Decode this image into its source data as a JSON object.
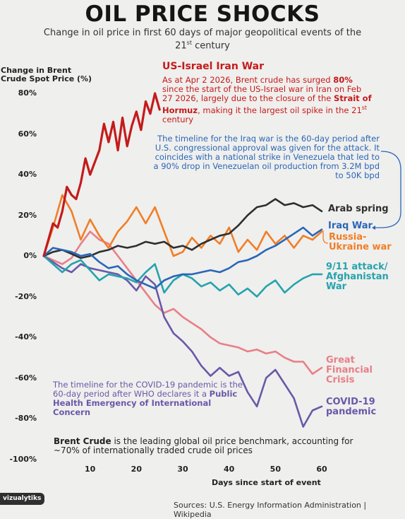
{
  "header": {
    "title": "OIL PRICE SHOCKS",
    "subtitle_pre": "Change in oil price in first 60 days of major geopolitical events of the 21",
    "subtitle_sup": "st",
    "subtitle_post": " century"
  },
  "annotations": {
    "iran_title": "US-Israel Iran War",
    "iran_note_1": "As at Apr 2 2026, Brent crude has surged ",
    "iran_note_bold1": "80%",
    "iran_note_2": " since the start of the US-Israel war in Iran on Feb 27 2026, largely due to the closure of the ",
    "iran_note_bold2": "Strait of Hormuz",
    "iran_note_3": ", making it the largest oil spike in the 21",
    "iran_note_sup": "st",
    "iran_note_4": " century",
    "iraq_note": "The timeline for the Iraq war is the 60-day period after U.S. congressional approval was given for the attack. It coincides with a national strike in Venezuela that led to a 90% drop in Venezuelan oil production from 3.2M bpd to 50K bpd",
    "covid_note_1": "The timeline for the COVID-19 pandemic is the 60-day period after WHO declares it a ",
    "covid_note_bold": "Public Health Emergency of International Concern",
    "brent_note_bold": "Brent Crude",
    "brent_note_rest": " is the leading global oil price benchmark, accounting for ~70% of internationally traded crude oil prices"
  },
  "footer": {
    "source": "Sources: U.S. Energy Information Administration | Wikipedia",
    "logo": "vizualytiks"
  },
  "chart_data": {
    "type": "line",
    "xlabel": "Days since start of event",
    "ylabel": "Change in Brent Crude Spot Price (%)",
    "xlim": [
      0,
      60
    ],
    "ylim": [
      -100,
      80
    ],
    "xticks": [
      10,
      20,
      30,
      40,
      50,
      60
    ],
    "yticks": [
      80,
      60,
      40,
      20,
      0,
      -20,
      -40,
      -60,
      -80,
      -100
    ],
    "ytick_labels": [
      "80%",
      "60%",
      "40%",
      "20%",
      "0%",
      "-20%",
      "-40%",
      "-60%",
      "-80%",
      "-100%"
    ],
    "grid": false,
    "series": [
      {
        "name": "US-Israel Iran War",
        "color": "#c41b1b",
        "x": [
          0,
          1,
          2,
          3,
          4,
          5,
          6,
          7,
          8,
          9,
          10,
          11,
          12,
          13,
          14,
          15,
          16,
          17,
          18,
          19,
          20,
          21,
          22,
          23,
          24,
          25
        ],
        "y": [
          0,
          8,
          16,
          14,
          22,
          34,
          30,
          28,
          36,
          48,
          40,
          46,
          52,
          65,
          56,
          66,
          52,
          68,
          54,
          64,
          71,
          62,
          76,
          70,
          80,
          72
        ]
      },
      {
        "name": "Arab spring",
        "color": "#2f2f2f",
        "x": [
          0,
          2,
          4,
          6,
          8,
          10,
          12,
          14,
          16,
          18,
          20,
          22,
          24,
          26,
          28,
          30,
          32,
          34,
          36,
          38,
          40,
          42,
          44,
          46,
          48,
          50,
          52,
          54,
          56,
          58,
          60
        ],
        "y": [
          0,
          2,
          3,
          1,
          -1,
          0,
          2,
          3,
          5,
          4,
          5,
          7,
          6,
          7,
          4,
          5,
          3,
          6,
          8,
          10,
          11,
          15,
          20,
          24,
          25,
          28,
          25,
          26,
          24,
          25,
          22
        ]
      },
      {
        "name": "Iraq War",
        "color": "#2a66b8",
        "x": [
          0,
          2,
          4,
          6,
          8,
          10,
          12,
          14,
          16,
          18,
          20,
          22,
          24,
          26,
          28,
          30,
          32,
          34,
          36,
          38,
          40,
          42,
          44,
          46,
          48,
          50,
          52,
          54,
          56,
          58,
          60
        ],
        "y": [
          0,
          4,
          3,
          2,
          0,
          1,
          -3,
          -6,
          -5,
          -9,
          -12,
          -14,
          -16,
          -12,
          -10,
          -9,
          -9,
          -8,
          -7,
          -8,
          -6,
          -3,
          -2,
          0,
          3,
          5,
          8,
          11,
          14,
          10,
          13
        ]
      },
      {
        "name": "Russia-Ukraine war",
        "color": "#f07e28",
        "x": [
          0,
          2,
          4,
          6,
          8,
          10,
          12,
          14,
          16,
          18,
          20,
          22,
          24,
          26,
          28,
          30,
          32,
          34,
          36,
          38,
          40,
          42,
          44,
          46,
          48,
          50,
          52,
          54,
          56,
          58,
          60
        ],
        "y": [
          0,
          14,
          30,
          22,
          8,
          18,
          10,
          4,
          12,
          17,
          24,
          16,
          24,
          12,
          0,
          2,
          9,
          4,
          10,
          6,
          14,
          2,
          8,
          3,
          12,
          6,
          10,
          4,
          10,
          8,
          12
        ]
      },
      {
        "name": "9/11 attack/ Afghanistan War",
        "color": "#25a3ad",
        "x": [
          0,
          2,
          4,
          6,
          8,
          10,
          12,
          14,
          16,
          18,
          20,
          22,
          24,
          26,
          28,
          30,
          32,
          34,
          36,
          38,
          40,
          42,
          44,
          46,
          48,
          50,
          52,
          54,
          56,
          58,
          60
        ],
        "y": [
          0,
          -4,
          -8,
          -4,
          -2,
          -7,
          -12,
          -9,
          -10,
          -11,
          -13,
          -8,
          -4,
          -18,
          -12,
          -9,
          -11,
          -15,
          -13,
          -17,
          -14,
          -19,
          -16,
          -20,
          -15,
          -12,
          -18,
          -14,
          -11,
          -9,
          -9
        ]
      },
      {
        "name": "Great Financial Crisis",
        "color": "#e87f87",
        "x": [
          0,
          2,
          4,
          6,
          8,
          10,
          12,
          14,
          16,
          18,
          20,
          22,
          24,
          26,
          28,
          30,
          32,
          34,
          36,
          38,
          40,
          42,
          44,
          46,
          48,
          50,
          52,
          54,
          56,
          58,
          60
        ],
        "y": [
          0,
          -2,
          -4,
          -1,
          6,
          12,
          8,
          6,
          0,
          -6,
          -12,
          -18,
          -24,
          -28,
          -26,
          -30,
          -33,
          -36,
          -40,
          -43,
          -44,
          -45,
          -47,
          -46,
          -48,
          -47,
          -50,
          -52,
          -52,
          -58,
          -55
        ]
      },
      {
        "name": "COVID-19 pandemic",
        "color": "#6a58a8",
        "x": [
          0,
          2,
          4,
          6,
          8,
          10,
          12,
          14,
          16,
          18,
          20,
          22,
          24,
          26,
          28,
          30,
          32,
          34,
          36,
          38,
          40,
          42,
          44,
          46,
          48,
          50,
          52,
          54,
          56,
          58,
          60
        ],
        "y": [
          0,
          -3,
          -6,
          -8,
          -4,
          -6,
          -7,
          -8,
          -9,
          -12,
          -17,
          -10,
          -14,
          -30,
          -38,
          -42,
          -47,
          -54,
          -59,
          -55,
          -59,
          -57,
          -67,
          -74,
          -60,
          -56,
          -63,
          -70,
          -84,
          -76,
          -74
        ]
      }
    ]
  }
}
